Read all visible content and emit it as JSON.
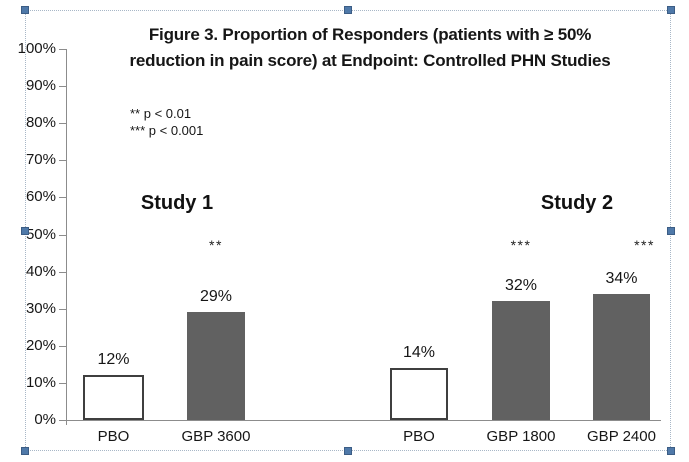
{
  "selection": {
    "border_color": "#a8b7c7",
    "handle_color": "#4f79a9",
    "handles": [
      "top-left",
      "top-center",
      "top-right",
      "middle-left",
      "middle-right",
      "bottom-left",
      "bottom-center",
      "bottom-right"
    ]
  },
  "chart_data": {
    "type": "bar",
    "title": "Figure 3. Proportion of Responders (patients with ≥ 50% reduction in pain score) at Endpoint: Controlled PHN Studies",
    "title_lines": [
      "Figure 3. Proportion of Responders (patients with ≥ 50%",
      "reduction in pain score) at Endpoint: Controlled PHN Studies"
    ],
    "annotations": [
      "** p < 0.01",
      "*** p < 0.001"
    ],
    "xlabel": "",
    "ylabel": "",
    "ylim": [
      0,
      100
    ],
    "ytick_step": 10,
    "ytick_labels": [
      "0%",
      "10%",
      "20%",
      "30%",
      "40%",
      "50%",
      "60%",
      "70%",
      "80%",
      "90%",
      "100%"
    ],
    "grid": false,
    "legend_position": "none",
    "bar_colors": {
      "treatment_fill": "#616161",
      "placebo_fill": "#ffffff",
      "placebo_border": "#3f3f3f"
    },
    "groups": [
      {
        "name": "Study 1",
        "bars": [
          {
            "label": "PBO",
            "value": 12,
            "value_label": "12%",
            "style": "placebo",
            "significance": ""
          },
          {
            "label": "GBP 3600",
            "value": 29,
            "value_label": "29%",
            "style": "treatment",
            "significance": "**"
          }
        ]
      },
      {
        "name": "Study 2",
        "bars": [
          {
            "label": "PBO",
            "value": 14,
            "value_label": "14%",
            "style": "placebo",
            "significance": ""
          },
          {
            "label": "GBP 1800",
            "value": 32,
            "value_label": "32%",
            "style": "treatment",
            "significance": "***"
          },
          {
            "label": "GBP 2400",
            "value": 34,
            "value_label": "34%",
            "style": "treatment",
            "significance": "***"
          }
        ]
      }
    ]
  }
}
